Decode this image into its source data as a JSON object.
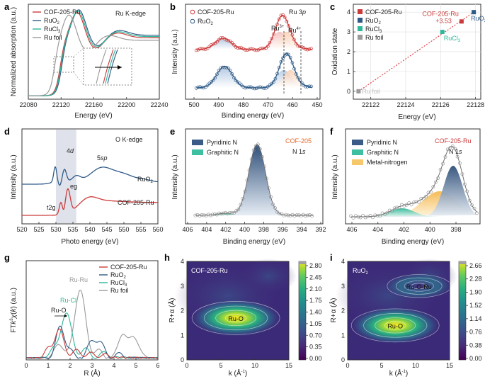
{
  "figure_title": "Ru K-edge / Ru 3p / O K-edge / N 1s / FT-EXAFS / Wavelet composite figure",
  "colors": {
    "cof": "#cc3b3b",
    "ruo2": "#2e5a87",
    "rucl3": "#2fb79a",
    "rufoil": "#9a9a9a",
    "pyridinic": "#3a5c86",
    "graphitic": "#3fbfa2",
    "metalN": "#f7c86b",
    "accent": "#e66a2c"
  },
  "chart_data": [
    {
      "id": "a",
      "type": "line",
      "title": "Ru K-edge",
      "xlabel": "Energy (eV)",
      "ylabel": "Normalized absorption (a.u.)",
      "xlim": [
        22080,
        22240
      ],
      "xticks": [
        "22080",
        "22120",
        "22160",
        "22200",
        "22240"
      ],
      "series": [
        {
          "name": "COF-205-Ru",
          "label": "COF-205-Ru",
          "color": "#cc3b3b",
          "edge": 22119,
          "peak": 22140,
          "plateau": 0.92
        },
        {
          "name": "RuO2",
          "label": "RuO",
          "sub": "2",
          "color": "#2e5a87",
          "edge": 22121,
          "peak": 22142,
          "plateau": 0.96
        },
        {
          "name": "RuCl3",
          "label": "RuCl",
          "sub": "3",
          "color": "#2fb79a",
          "edge": 22120,
          "peak": 22141,
          "plateau": 0.94
        },
        {
          "name": "Ru foil",
          "label": "Ru foil",
          "color": "#9a9a9a",
          "edge": 22112,
          "peak": 22130,
          "plateau": 0.88
        }
      ],
      "inset_arrow": "right"
    },
    {
      "id": "b",
      "type": "line",
      "title": "Ru 3",
      "title_italic": "p",
      "xlabel": "Binding energy (eV)",
      "ylabel": "Intensity (a.u.)",
      "xlim": [
        500,
        450
      ],
      "xticks": [
        "500",
        "490",
        "480",
        "470",
        "460",
        "450"
      ],
      "series": [
        {
          "name": "COF-205-Ru",
          "label": "COF-205-Ru",
          "color": "#cc3b3b",
          "peaks": [
            486.0,
            464.0
          ]
        },
        {
          "name": "RuO2",
          "label": "RuO",
          "sub": "2",
          "color": "#2e5a87",
          "peaks": [
            485.5,
            462.5
          ]
        }
      ],
      "annotations": [
        {
          "text": "Ru",
          "sup": "3+"
        },
        {
          "text": "Ru",
          "sup": "4+"
        }
      ]
    },
    {
      "id": "c",
      "type": "scatter",
      "xlabel": "Energy (eV)",
      "ylabel": "Oxidation state",
      "xlim": [
        22121,
        22128.3
      ],
      "ylim": [
        -0.4,
        4.4
      ],
      "xticks": [
        22122,
        22124,
        22126,
        22128
      ],
      "yticks": [
        0,
        1,
        2,
        3,
        4
      ],
      "points": [
        {
          "name": "COF-205-Ru",
          "label": "COF-205-Ru",
          "x": 22127.2,
          "y": 3.53,
          "color": "#cc3b3b",
          "value_label": "+3.53"
        },
        {
          "name": "RuO2",
          "label": "RuO",
          "sub": "2",
          "x": 22127.9,
          "y": 4,
          "color": "#2e5a87"
        },
        {
          "name": "RuCl3",
          "label": "RuCl",
          "sub": "3",
          "x": 22126.1,
          "y": 3,
          "color": "#2fb79a"
        },
        {
          "name": "Ru foil",
          "label": "Ru foil",
          "x": 22121.3,
          "y": 0,
          "color": "#9a9a9a"
        }
      ],
      "fit_line": {
        "x": [
          22121.3,
          22127.9
        ],
        "y": [
          0,
          4
        ],
        "style": "dotted",
        "color": "#e0383e"
      }
    },
    {
      "id": "d",
      "type": "line",
      "title": "O K-edge",
      "xlabel": "Photo energy (eV)",
      "ylabel": "Intensity (a.u.)",
      "xlim": [
        520,
        560
      ],
      "xticks": [
        "520",
        "525",
        "530",
        "535",
        "540",
        "545",
        "550",
        "555",
        "560"
      ],
      "shaded_region": [
        530,
        536
      ],
      "series": [
        {
          "name": "RuO2",
          "label": "RuO",
          "sub": "2",
          "color": "#2e5a87"
        },
        {
          "name": "COF-205-Ru",
          "label": "COF-205-Ru",
          "color": "#cc3b3b"
        }
      ],
      "annotations": [
        {
          "text": "4",
          "italic": "d"
        },
        {
          "text": "5",
          "italic": "sp"
        },
        {
          "text": "eg"
        },
        {
          "text": "t2g"
        }
      ]
    },
    {
      "id": "e",
      "type": "line",
      "sample": "COF-205",
      "title": "N 1",
      "title_italic": "s",
      "xlabel": "Binding energy (eV)",
      "ylabel": "Intensity (a.u.)",
      "xlim": [
        406,
        392
      ],
      "xticks": [
        "406",
        "404",
        "402",
        "400",
        "398",
        "396",
        "394",
        "392"
      ],
      "components": [
        {
          "name": "Pyridinic N",
          "label": "Pyridinic N",
          "center": 398.7,
          "height": 1.0,
          "color": "#3a5c86"
        },
        {
          "name": "Graphitic N",
          "label": "Graphitic N",
          "center": 401.9,
          "height": 0.03,
          "color": "#3fbfa2"
        }
      ]
    },
    {
      "id": "f",
      "type": "line",
      "sample": "COF-205-Ru",
      "title": "N 1",
      "title_italic": "s",
      "xlabel": "Binding energy (eV)",
      "ylabel": "Intensity (a.u.)",
      "xlim": [
        406,
        396
      ],
      "xticks": [
        "406",
        "404",
        "402",
        "400",
        "398"
      ],
      "components": [
        {
          "name": "Pyridinic N",
          "label": "Pyridinic N",
          "center": 398.2,
          "height": 0.72,
          "color": "#3a5c86"
        },
        {
          "name": "Graphitic N",
          "label": "Graphitic N",
          "center": 402.0,
          "height": 0.12,
          "color": "#3fbfa2"
        },
        {
          "name": "Metal-nitrogen",
          "label": "Metal-nitrogen",
          "center": 399.2,
          "height": 0.36,
          "color": "#f7c86b"
        }
      ]
    },
    {
      "id": "g",
      "type": "line",
      "xlabel": "R (Å)",
      "ylabel": "FT",
      "ylabel_sup": "3",
      "xlim": [
        0,
        6
      ],
      "xticks": [
        "0",
        "1",
        "2",
        "3",
        "4",
        "5",
        "6"
      ],
      "series": [
        {
          "name": "COF-205-Ru",
          "label": "COF-205-Ru",
          "color": "#cc3b3b"
        },
        {
          "name": "RuO2",
          "label": "RuO",
          "sub": "2",
          "color": "#2e5a87"
        },
        {
          "name": "RuCl3",
          "label": "RuCl",
          "sub": "3",
          "color": "#2fb79a"
        },
        {
          "name": "Ru foil",
          "label": "Ru foil",
          "color": "#9a9a9a"
        }
      ],
      "annotations": [
        {
          "text": "Ru-Ru",
          "color": "#9a9a9a"
        },
        {
          "text": "Ru-Cl",
          "color": "#2fb79a"
        },
        {
          "text": "Ru-O",
          "color": "#222222"
        }
      ]
    },
    {
      "id": "h",
      "type": "heatmap",
      "title": "COF-205-Ru",
      "xlabel": "k (Å",
      "xlabel_sup": "-1",
      "ylabel": "R+α (Å)",
      "xlim": [
        0,
        15
      ],
      "ylim": [
        0,
        4
      ],
      "xticks": [
        "0",
        "5",
        "10",
        "15"
      ],
      "yticks": [
        "0",
        "1",
        "2",
        "3",
        "4"
      ],
      "colorbar_ticks": [
        "2.80",
        "2.45",
        "2.10",
        "1.75",
        "1.40",
        "1.05",
        "0.70",
        "0.35",
        "0.00"
      ],
      "features": [
        {
          "label": "Ru-O",
          "k": 7.2,
          "r": 1.7,
          "strength": 1.0
        }
      ]
    },
    {
      "id": "i",
      "type": "heatmap",
      "title": "RuO",
      "title_sub": "2",
      "xlabel": "k (Å",
      "xlabel_sup": "-1",
      "ylabel": "R+α (Å)",
      "xlim": [
        0,
        15
      ],
      "ylim": [
        0,
        4
      ],
      "xticks": [
        "0",
        "5",
        "10",
        "15"
      ],
      "yticks": [
        "0",
        "1",
        "2",
        "3",
        "4"
      ],
      "colorbar_ticks": [
        "2.66",
        "2.28",
        "1.90",
        "1.52",
        "1.14",
        "0.76",
        "0.38",
        "0.00"
      ],
      "features": [
        {
          "label": "Ru-O",
          "k": 7.0,
          "r": 1.4,
          "strength": 1.0
        },
        {
          "label": "Ru-O-Ru",
          "k": 10.5,
          "r": 3.0,
          "strength": 0.55
        }
      ]
    }
  ]
}
